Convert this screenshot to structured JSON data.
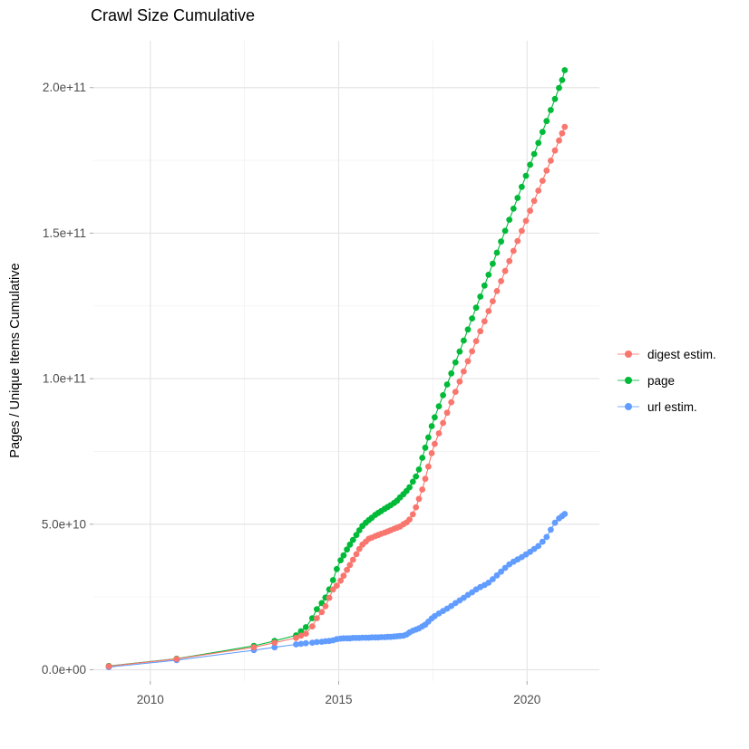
{
  "page": {
    "title": "Crawl Size Cumulative"
  },
  "chart_data": {
    "type": "scatter",
    "title": "Crawl Size Cumulative",
    "xlabel": "",
    "ylabel": "Pages / Unique Items Cumulative",
    "grid": true,
    "legend_position": "right",
    "x_domain": [
      2008.49,
      2021.92
    ],
    "y_domain": [
      -3900000000.0,
      216100000000.0
    ],
    "x_ticks": {
      "values": [
        2010,
        2015,
        2020
      ],
      "labels": [
        "2010",
        "2015",
        "2020"
      ],
      "minor": [
        2012.5,
        2017.5
      ]
    },
    "y_ticks": {
      "values": [
        0,
        50000000000.0,
        100000000000.0,
        150000000000.0,
        200000000000.0
      ],
      "labels": [
        "0.0e+00",
        "5.0e+10",
        "1.0e+11",
        "1.5e+11",
        "2.0e+11"
      ],
      "minor": [
        25000000000.0,
        75000000000.0,
        125000000000.0,
        175000000000.0
      ]
    },
    "series": [
      {
        "label": "digest estim.",
        "color": "#f8766d",
        "points": [
          [
            2008.9,
            1200000000.0
          ],
          [
            2010.7,
            3700000000.0
          ],
          [
            2012.75,
            7700000000.0
          ],
          [
            2013.3,
            9300000000.0
          ],
          [
            2013.87,
            10900000000.0
          ],
          [
            2014.0,
            11700000000.0
          ],
          [
            2014.13,
            12400000000.0
          ],
          [
            2014.3,
            14900000000.0
          ],
          [
            2014.42,
            17700000000.0
          ],
          [
            2014.55,
            19800000000.0
          ],
          [
            2014.65,
            21800000000.0
          ],
          [
            2014.75,
            24700000000.0
          ],
          [
            2014.85,
            27600000000.0
          ],
          [
            2014.95,
            28900000000.0
          ],
          [
            2015.05,
            30600000000.0
          ],
          [
            2015.13,
            32300000000.0
          ],
          [
            2015.22,
            34300000000.0
          ],
          [
            2015.3,
            36000000000.0
          ],
          [
            2015.38,
            37800000000.0
          ],
          [
            2015.47,
            39700000000.0
          ],
          [
            2015.55,
            41500000000.0
          ],
          [
            2015.63,
            43000000000.0
          ],
          [
            2015.72,
            44000000000.0
          ],
          [
            2015.8,
            45000000000.0
          ],
          [
            2015.88,
            45400000000.0
          ],
          [
            2015.97,
            45900000000.0
          ],
          [
            2016.05,
            46300000000.0
          ],
          [
            2016.13,
            46700000000.0
          ],
          [
            2016.22,
            47100000000.0
          ],
          [
            2016.3,
            47500000000.0
          ],
          [
            2016.38,
            47900000000.0
          ],
          [
            2016.47,
            48400000000.0
          ],
          [
            2016.55,
            48800000000.0
          ],
          [
            2016.63,
            49200000000.0
          ],
          [
            2016.72,
            50000000000.0
          ],
          [
            2016.8,
            50600000000.0
          ],
          [
            2016.88,
            51600000000.0
          ],
          [
            2016.97,
            53400000000.0
          ],
          [
            2017.05,
            55800000000.0
          ],
          [
            2017.13,
            58700000000.0
          ],
          [
            2017.22,
            61900000000.0
          ],
          [
            2017.3,
            65600000000.0
          ],
          [
            2017.38,
            69800000000.0
          ],
          [
            2017.47,
            74400000000.0
          ],
          [
            2017.55,
            77600000000.0
          ],
          [
            2017.66,
            81200000000.0
          ],
          [
            2017.77,
            84800000000.0
          ],
          [
            2017.88,
            88300000000.0
          ],
          [
            2017.99,
            91900000000.0
          ],
          [
            2018.1,
            95500000000.0
          ],
          [
            2018.21,
            99000000000.0
          ],
          [
            2018.32,
            102500000000.0
          ],
          [
            2018.43,
            106000000000.0
          ],
          [
            2018.54,
            109400000000.0
          ],
          [
            2018.65,
            112900000000.0
          ],
          [
            2018.76,
            116300000000.0
          ],
          [
            2018.87,
            119700000000.0
          ],
          [
            2018.98,
            123200000000.0
          ],
          [
            2019.09,
            126600000000.0
          ],
          [
            2019.2,
            130100000000.0
          ],
          [
            2019.31,
            133500000000.0
          ],
          [
            2019.42,
            137000000000.0
          ],
          [
            2019.53,
            140400000000.0
          ],
          [
            2019.64,
            143900000000.0
          ],
          [
            2019.75,
            147300000000.0
          ],
          [
            2019.86,
            150800000000.0
          ],
          [
            2019.97,
            154200000000.0
          ],
          [
            2020.08,
            157700000000.0
          ],
          [
            2020.19,
            161100000000.0
          ],
          [
            2020.3,
            164600000000.0
          ],
          [
            2020.41,
            168000000000.0
          ],
          [
            2020.52,
            171500000000.0
          ],
          [
            2020.63,
            174900000000.0
          ],
          [
            2020.74,
            178400000000.0
          ],
          [
            2020.85,
            181800000000.0
          ],
          [
            2020.93,
            184300000000.0
          ],
          [
            2021.0,
            186500000000.0
          ]
        ]
      },
      {
        "label": "page",
        "color": "#00ba38",
        "points": [
          [
            2008.9,
            1300000000.0
          ],
          [
            2010.7,
            3800000000.0
          ],
          [
            2012.75,
            8200000000.0
          ],
          [
            2013.3,
            9900000000.0
          ],
          [
            2013.87,
            11800000000.0
          ],
          [
            2014.0,
            13200000000.0
          ],
          [
            2014.13,
            14600000000.0
          ],
          [
            2014.3,
            17700000000.0
          ],
          [
            2014.42,
            20800000000.0
          ],
          [
            2014.55,
            22900000000.0
          ],
          [
            2014.65,
            24800000000.0
          ],
          [
            2014.75,
            27600000000.0
          ],
          [
            2014.85,
            30800000000.0
          ],
          [
            2014.95,
            34600000000.0
          ],
          [
            2015.05,
            37600000000.0
          ],
          [
            2015.13,
            39300000000.0
          ],
          [
            2015.22,
            41300000000.0
          ],
          [
            2015.3,
            43000000000.0
          ],
          [
            2015.38,
            44600000000.0
          ],
          [
            2015.47,
            46300000000.0
          ],
          [
            2015.55,
            47900000000.0
          ],
          [
            2015.63,
            49400000000.0
          ],
          [
            2015.72,
            50500000000.0
          ],
          [
            2015.8,
            51400000000.0
          ],
          [
            2015.88,
            52200000000.0
          ],
          [
            2015.97,
            53200000000.0
          ],
          [
            2016.05,
            53900000000.0
          ],
          [
            2016.13,
            54500000000.0
          ],
          [
            2016.22,
            55300000000.0
          ],
          [
            2016.3,
            55900000000.0
          ],
          [
            2016.38,
            56500000000.0
          ],
          [
            2016.47,
            57300000000.0
          ],
          [
            2016.55,
            58100000000.0
          ],
          [
            2016.63,
            59200000000.0
          ],
          [
            2016.72,
            60300000000.0
          ],
          [
            2016.8,
            61400000000.0
          ],
          [
            2016.88,
            62700000000.0
          ],
          [
            2016.97,
            64600000000.0
          ],
          [
            2017.05,
            66400000000.0
          ],
          [
            2017.13,
            68800000000.0
          ],
          [
            2017.22,
            72800000000.0
          ],
          [
            2017.3,
            76300000000.0
          ],
          [
            2017.38,
            79800000000.0
          ],
          [
            2017.47,
            83700000000.0
          ],
          [
            2017.55,
            86700000000.0
          ],
          [
            2017.66,
            90500000000.0
          ],
          [
            2017.77,
            94300000000.0
          ],
          [
            2017.88,
            98000000000.0
          ],
          [
            2017.99,
            101800000000.0
          ],
          [
            2018.1,
            105600000000.0
          ],
          [
            2018.21,
            109300000000.0
          ],
          [
            2018.32,
            113100000000.0
          ],
          [
            2018.43,
            116900000000.0
          ],
          [
            2018.54,
            120700000000.0
          ],
          [
            2018.65,
            124400000000.0
          ],
          [
            2018.76,
            128200000000.0
          ],
          [
            2018.87,
            132000000000.0
          ],
          [
            2018.98,
            135700000000.0
          ],
          [
            2019.09,
            139500000000.0
          ],
          [
            2019.2,
            143300000000.0
          ],
          [
            2019.31,
            147100000000.0
          ],
          [
            2019.42,
            150800000000.0
          ],
          [
            2019.53,
            154600000000.0
          ],
          [
            2019.64,
            158400000000.0
          ],
          [
            2019.75,
            162100000000.0
          ],
          [
            2019.86,
            165900000000.0
          ],
          [
            2019.97,
            169700000000.0
          ],
          [
            2020.08,
            173500000000.0
          ],
          [
            2020.19,
            177200000000.0
          ],
          [
            2020.3,
            181000000000.0
          ],
          [
            2020.41,
            184800000000.0
          ],
          [
            2020.52,
            188500000000.0
          ],
          [
            2020.63,
            192300000000.0
          ],
          [
            2020.74,
            196100000000.0
          ],
          [
            2020.85,
            199900000000.0
          ],
          [
            2020.93,
            202600000000.0
          ],
          [
            2021.0,
            206000000000.0
          ]
        ]
      },
      {
        "label": "url estim.",
        "color": "#619cff",
        "points": [
          [
            2008.9,
            900000000.0
          ],
          [
            2010.7,
            3300000000.0
          ],
          [
            2012.75,
            6700000000.0
          ],
          [
            2013.3,
            7700000000.0
          ],
          [
            2013.87,
            8700000000.0
          ],
          [
            2014.0,
            8900000000.0
          ],
          [
            2014.13,
            9100000000.0
          ],
          [
            2014.3,
            9300000000.0
          ],
          [
            2014.42,
            9500000000.0
          ],
          [
            2014.55,
            9600000000.0
          ],
          [
            2014.65,
            9800000000.0
          ],
          [
            2014.75,
            9900000000.0
          ],
          [
            2014.85,
            10100000000.0
          ],
          [
            2014.95,
            10500000000.0
          ],
          [
            2015.05,
            10700000000.0
          ],
          [
            2015.13,
            10800000000.0
          ],
          [
            2015.22,
            10800000000.0
          ],
          [
            2015.3,
            10800000000.0
          ],
          [
            2015.38,
            10900000000.0
          ],
          [
            2015.47,
            10900000000.0
          ],
          [
            2015.55,
            10900000000.0
          ],
          [
            2015.63,
            11000000000.0
          ],
          [
            2015.72,
            11000000000.0
          ],
          [
            2015.8,
            11000000000.0
          ],
          [
            2015.88,
            11100000000.0
          ],
          [
            2015.97,
            11100000000.0
          ],
          [
            2016.05,
            11100000000.0
          ],
          [
            2016.13,
            11200000000.0
          ],
          [
            2016.22,
            11200000000.0
          ],
          [
            2016.3,
            11300000000.0
          ],
          [
            2016.38,
            11300000000.0
          ],
          [
            2016.47,
            11400000000.0
          ],
          [
            2016.55,
            11500000000.0
          ],
          [
            2016.63,
            11600000000.0
          ],
          [
            2016.72,
            11700000000.0
          ],
          [
            2016.8,
            12100000000.0
          ],
          [
            2016.88,
            12800000000.0
          ],
          [
            2016.97,
            13400000000.0
          ],
          [
            2017.05,
            13800000000.0
          ],
          [
            2017.13,
            14200000000.0
          ],
          [
            2017.22,
            14900000000.0
          ],
          [
            2017.3,
            15500000000.0
          ],
          [
            2017.38,
            16500000000.0
          ],
          [
            2017.47,
            17600000000.0
          ],
          [
            2017.55,
            18400000000.0
          ],
          [
            2017.66,
            19300000000.0
          ],
          [
            2017.77,
            20200000000.0
          ],
          [
            2017.88,
            21000000000.0
          ],
          [
            2017.99,
            21900000000.0
          ],
          [
            2018.1,
            22900000000.0
          ],
          [
            2018.21,
            23800000000.0
          ],
          [
            2018.32,
            24700000000.0
          ],
          [
            2018.43,
            25700000000.0
          ],
          [
            2018.54,
            26600000000.0
          ],
          [
            2018.65,
            27600000000.0
          ],
          [
            2018.76,
            28400000000.0
          ],
          [
            2018.87,
            29100000000.0
          ],
          [
            2018.98,
            29900000000.0
          ],
          [
            2019.09,
            31100000000.0
          ],
          [
            2019.2,
            32400000000.0
          ],
          [
            2019.31,
            33700000000.0
          ],
          [
            2019.42,
            35000000000.0
          ],
          [
            2019.53,
            36200000000.0
          ],
          [
            2019.64,
            37100000000.0
          ],
          [
            2019.75,
            37900000000.0
          ],
          [
            2019.86,
            38700000000.0
          ],
          [
            2019.97,
            39600000000.0
          ],
          [
            2020.08,
            40500000000.0
          ],
          [
            2020.19,
            41500000000.0
          ],
          [
            2020.3,
            42500000000.0
          ],
          [
            2020.41,
            44000000000.0
          ],
          [
            2020.52,
            45600000000.0
          ],
          [
            2020.63,
            48100000000.0
          ],
          [
            2020.74,
            50500000000.0
          ],
          [
            2020.85,
            52000000000.0
          ],
          [
            2020.93,
            52800000000.0
          ],
          [
            2021.0,
            53500000000.0
          ]
        ]
      }
    ]
  }
}
